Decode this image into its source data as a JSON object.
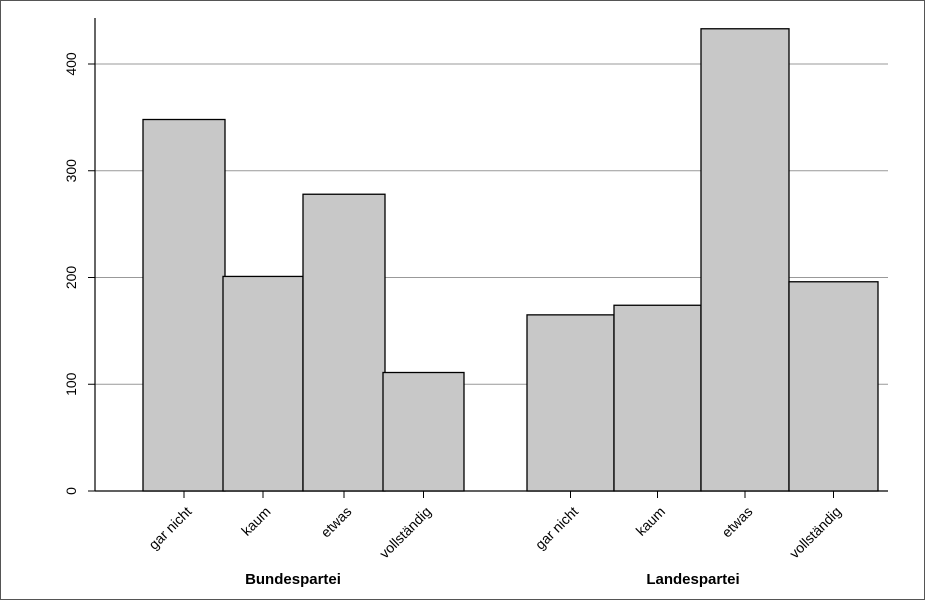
{
  "chart_data": {
    "type": "bar",
    "groups": [
      {
        "name": "Bundespartei",
        "categories": [
          "gar nicht",
          "kaum",
          "etwas",
          "vollständig"
        ],
        "values": [
          348,
          201,
          278,
          111
        ]
      },
      {
        "name": "Landespartei",
        "categories": [
          "gar nicht",
          "kaum",
          "etwas",
          "vollständig"
        ],
        "values": [
          165,
          174,
          433,
          196
        ]
      }
    ],
    "ylim": [
      0,
      450
    ],
    "yticks": [
      0,
      100,
      200,
      300,
      400
    ],
    "grid": true,
    "colors": {
      "bar_fill": "#c8c8c8",
      "bar_stroke": "#000000",
      "grid": "#999999"
    }
  }
}
